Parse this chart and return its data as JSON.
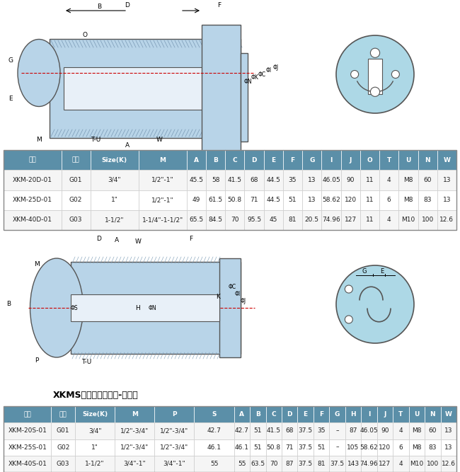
{
  "bg_color": "#ffffff",
  "diagram_bg": "#add8e6",
  "table1_header": [
    "型号",
    "规格",
    "Size(K)",
    "M",
    "A",
    "B",
    "C",
    "D",
    "E",
    "F",
    "G",
    "I",
    "J",
    "O",
    "T",
    "U",
    "N",
    "W"
  ],
  "table1_rows": [
    [
      "XKM-20D-01",
      "G01",
      "3/4\"",
      "1/2\"-1\"",
      "45.5",
      "58",
      "41.5",
      "68",
      "44.5",
      "35",
      "13",
      "46.05",
      "90",
      "11",
      "4",
      "M8",
      "60",
      "13"
    ],
    [
      "XKM-25D-01",
      "G02",
      "1\"",
      "1/2\"-1\"",
      "49",
      "61.5",
      "50.8",
      "71",
      "44.5",
      "51",
      "13",
      "58.62",
      "120",
      "11",
      "6",
      "M8",
      "83",
      "13"
    ],
    [
      "XKM-40D-01",
      "G03",
      "1-1/2\"",
      "1-1/4\"-1-1/2\"",
      "65.5",
      "84.5",
      "70",
      "95.5",
      "45",
      "81",
      "20.5",
      "74.96",
      "127",
      "11",
      "4",
      "M10",
      "100",
      "12.6"
    ]
  ],
  "table1_header_bg": "#5b8fa8",
  "table1_row_bg": [
    "#f5f5f5",
    "#ffffff",
    "#f5f5f5"
  ],
  "table1_row_alt_bg": "#ffffff",
  "section2_title": "XKMS双向、内管固定-埋入式",
  "table2_header": [
    "型号",
    "规格",
    "Size(K)",
    "M",
    "P",
    "S",
    "A",
    "B",
    "C",
    "D",
    "E",
    "F",
    "G",
    "H",
    "I",
    "J",
    "T",
    "U",
    "N",
    "W"
  ],
  "table2_rows": [
    [
      "XKM-20S-01",
      "G01",
      "3/4\"",
      "1/2\"-3/4\"",
      "1/2\"-3/4\"",
      "42.7",
      "42.7",
      "51",
      "41.5",
      "68",
      "37.5",
      "35",
      "–",
      "87",
      "46.05",
      "90",
      "4",
      "M8",
      "60",
      "13"
    ],
    [
      "XKM-25S-01",
      "G02",
      "1\"",
      "1/2\"-3/4\"",
      "1/2\"-3/4\"",
      "46.1",
      "46.1",
      "51",
      "50.8",
      "71",
      "37.5",
      "51",
      "–",
      "105",
      "58.62",
      "120",
      "6",
      "M8",
      "83",
      "13"
    ],
    [
      "XKM-40S-01",
      "G03",
      "1-1/2\"",
      "3/4\"-1\"",
      "3/4\"-1\"",
      "55",
      "55",
      "63.5",
      "70",
      "87",
      "37.5",
      "81",
      "37.5",
      "143",
      "74.96",
      "127",
      "4",
      "M10",
      "100",
      "12.6"
    ]
  ],
  "table2_header_bg": "#5b8fa8",
  "table2_row_bg": [
    "#f5f5f5",
    "#ffffff",
    "#f5f5f5"
  ]
}
